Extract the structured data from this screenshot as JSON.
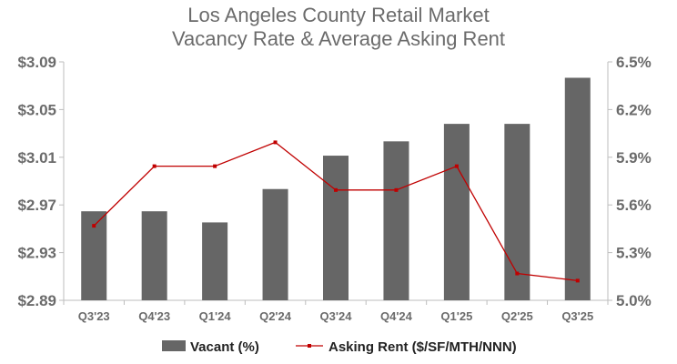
{
  "chart_data": {
    "type": "bar",
    "title_lines": [
      "Los Angeles County Retail Market",
      "Vacancy Rate & Average Asking Rent"
    ],
    "categories": [
      "Q3'23",
      "Q4'23",
      "Q1'24",
      "Q2'24",
      "Q3'24",
      "Q4'24",
      "Q1'25",
      "Q2'25",
      "Q3'25"
    ],
    "series": [
      {
        "name": "Vacant (%)",
        "type": "bar",
        "axis": "right",
        "color": "#666666",
        "values": [
          5.56,
          5.56,
          5.49,
          5.7,
          5.91,
          6.0,
          6.11,
          6.11,
          6.4
        ]
      },
      {
        "name": "Asking Rent ($/SF/MTH/NNN)",
        "type": "line",
        "axis": "left",
        "color": "#c00000",
        "values": [
          2.9525,
          3.0025,
          3.0025,
          3.0225,
          2.9825,
          2.9825,
          3.0025,
          2.9125,
          2.9065
        ]
      }
    ],
    "y_left": {
      "ticks": [
        "$3.09",
        "$3.05",
        "$3.01",
        "$2.97",
        "$2.93",
        "$2.89"
      ],
      "ylim": [
        2.89,
        3.09
      ]
    },
    "y_right": {
      "ticks": [
        "6.5%",
        "6.2%",
        "5.9%",
        "5.6%",
        "5.3%",
        "5.0%"
      ],
      "ylim": [
        5.0,
        6.5
      ]
    },
    "grid": false,
    "legend_position": "bottom"
  }
}
